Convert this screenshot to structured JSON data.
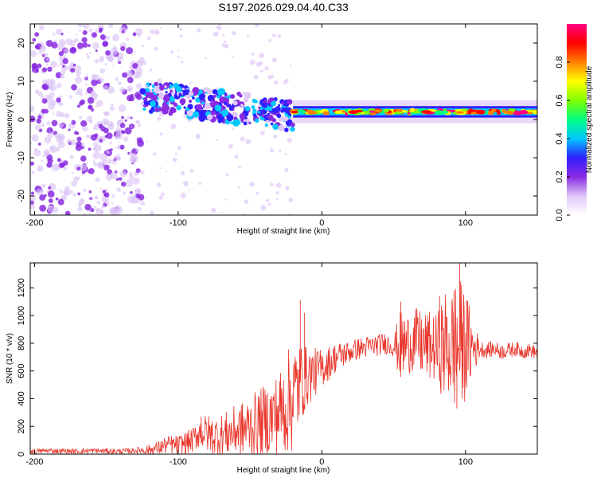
{
  "title": "S197.2026.029.04.40.C33",
  "chart_data": [
    {
      "type": "heatmap",
      "name": "spectrogram",
      "xlabel": "Height of straight line (km)",
      "ylabel": "Frequency (Hz)",
      "xlim": [
        -203,
        150
      ],
      "ylim": [
        -25,
        25
      ],
      "x_ticks": [
        -200,
        -100,
        0,
        100
      ],
      "y_ticks": [
        -20,
        -10,
        0,
        10,
        20
      ],
      "colorbar": {
        "label": "Normalized spectral amplitude",
        "range": [
          0,
          1
        ],
        "ticks": [
          "0.0",
          "0.2",
          "0.4",
          "0.6",
          "0.8"
        ],
        "colors": [
          "#ffffff",
          "#e0c8f8",
          "#8a2be2",
          "#3020ff",
          "#00c8ff",
          "#00ff80",
          "#80ff00",
          "#ffff00",
          "#ff8000",
          "#ff0000",
          "#ff0080"
        ]
      },
      "features": [
        {
          "region": "noise",
          "x_range": [
            -203,
            -125
          ],
          "freq_range": [
            -25,
            25
          ],
          "amplitude": 0.1
        },
        {
          "region": "diffuse",
          "x_range": [
            -125,
            -20
          ],
          "freq_range": [
            -25,
            25
          ],
          "amplitude": 0.05
        },
        {
          "region": "blob-band",
          "x_range": [
            -125,
            -20
          ],
          "freq_center_start": 6,
          "freq_center_end": 1,
          "amplitude": 0.3
        },
        {
          "region": "signal-band",
          "x_range": [
            -20,
            150
          ],
          "freq_center": 2,
          "amplitude": 0.8
        }
      ]
    },
    {
      "type": "line",
      "name": "snr",
      "xlabel": "Height of straight line (km)",
      "ylabel": "SNR (10 * v/v)",
      "xlim": [
        -203,
        150
      ],
      "ylim": [
        0,
        1380
      ],
      "x_ticks": [
        -200,
        -100,
        0,
        100
      ],
      "y_ticks": [
        0,
        200,
        400,
        600,
        800,
        1000,
        1200
      ],
      "color": "#e8352a",
      "series": [
        {
          "name": "SNR",
          "x": [
            -203,
            -190,
            -180,
            -170,
            -160,
            -150,
            -140,
            -130,
            -125,
            -120,
            -115,
            -110,
            -105,
            -100,
            -95,
            -90,
            -85,
            -80,
            -75,
            -70,
            -65,
            -60,
            -55,
            -50,
            -45,
            -40,
            -35,
            -30,
            -25,
            -22,
            -20,
            -18,
            -15,
            -12,
            -10,
            -5,
            0,
            5,
            10,
            15,
            20,
            25,
            30,
            35,
            40,
            45,
            50,
            55,
            60,
            65,
            70,
            75,
            80,
            85,
            90,
            95,
            100,
            105,
            110,
            115,
            120,
            125,
            130,
            135,
            140,
            145,
            150
          ],
          "y": [
            20,
            25,
            22,
            20,
            25,
            22,
            20,
            25,
            30,
            30,
            40,
            60,
            70,
            60,
            80,
            100,
            160,
            150,
            130,
            140,
            150,
            170,
            180,
            200,
            220,
            240,
            260,
            300,
            350,
            400,
            420,
            450,
            520,
            540,
            560,
            590,
            620,
            660,
            700,
            720,
            740,
            760,
            770,
            780,
            790,
            800,
            780,
            770,
            800,
            820,
            790,
            780,
            760,
            780,
            770,
            780,
            790,
            770,
            760,
            750,
            760,
            740,
            750,
            760,
            740,
            750,
            730
          ]
        }
      ],
      "noise_envelope": {
        "x": [
          -203,
          -130,
          -110,
          -90,
          -80,
          -70,
          -50,
          -30,
          -20,
          -15,
          -10,
          0,
          20,
          50,
          55,
          60,
          70,
          80,
          85,
          90,
          95,
          100,
          105,
          110,
          150
        ],
        "amp": [
          18,
          20,
          60,
          90,
          140,
          150,
          220,
          300,
          420,
          300,
          220,
          140,
          80,
          80,
          280,
          220,
          250,
          250,
          400,
          420,
          520,
          400,
          220,
          60,
          50
        ]
      },
      "peaks": [
        {
          "x": -84,
          "y": 270
        },
        {
          "x": -15,
          "y": 1110
        },
        {
          "x": -12,
          "y": 1020
        },
        {
          "x": 55,
          "y": 1100
        },
        {
          "x": 82,
          "y": 1140
        },
        {
          "x": 96,
          "y": 1390
        },
        {
          "x": 92,
          "y": 1180
        },
        {
          "x": 101,
          "y": 1110
        },
        {
          "x": 94,
          "y": 330
        }
      ]
    }
  ]
}
